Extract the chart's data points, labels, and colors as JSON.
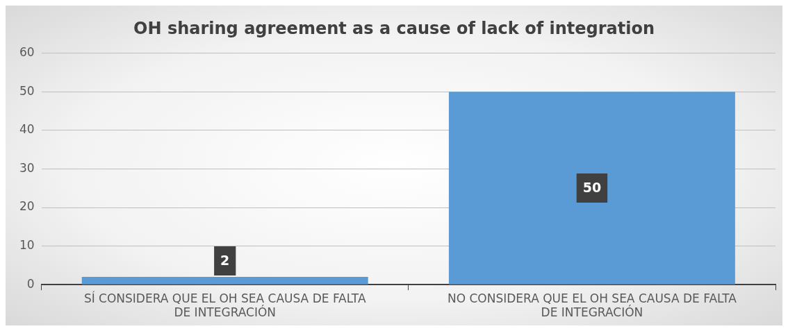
{
  "chart_data": {
    "type": "bar",
    "title": "OH sharing agreement as a cause of lack of integration",
    "categories": [
      "SÍ CONSIDERA QUE EL OH SEA CAUSA DE FALTA DE INTEGRACIÓN",
      "NO CONSIDERA QUE EL OH SEA CAUSA DE FALTA DE INTEGRACIÓN"
    ],
    "values": [
      2,
      50
    ],
    "color": "#5b9bd5",
    "ylim": [
      0,
      60
    ],
    "yticks": [
      0,
      10,
      20,
      30,
      40,
      50,
      60
    ],
    "grid": "y",
    "legend": false,
    "data_labels": true
  }
}
